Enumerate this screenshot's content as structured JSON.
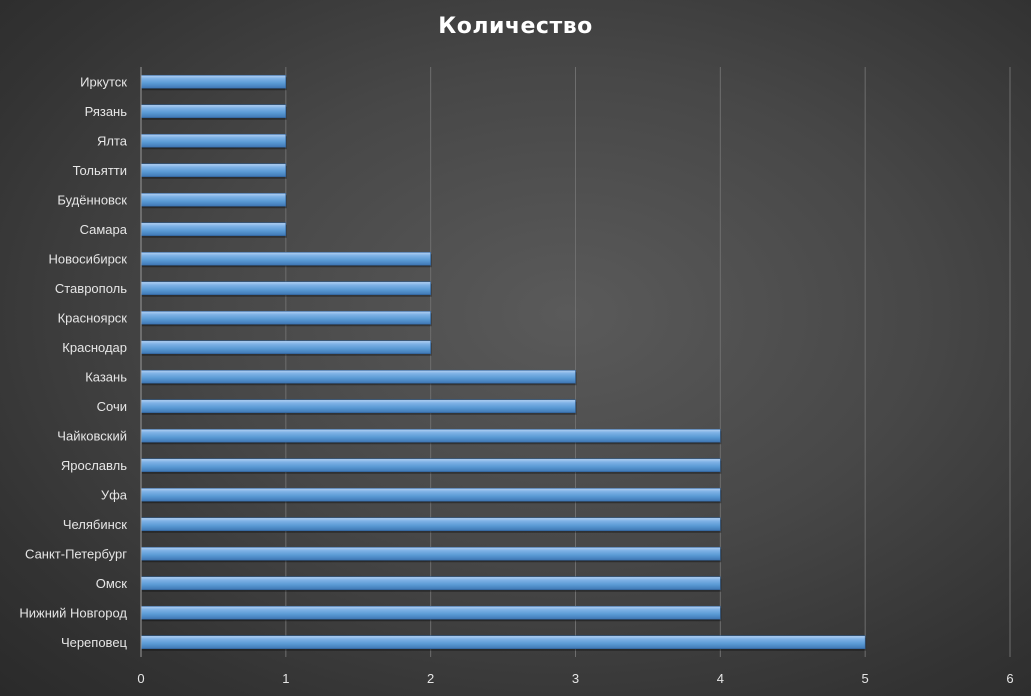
{
  "chart_data": {
    "type": "bar",
    "orientation": "horizontal",
    "title": "Количество",
    "xlabel": "",
    "ylabel": "",
    "categories": [
      "Череповец",
      "Нижний Новгород",
      "Омск",
      "Санкт-Петербург",
      "Челябинск",
      "Уфа",
      "Ярославль",
      "Чайковский",
      "Сочи",
      "Казань",
      "Краснодар",
      "Красноярск",
      "Ставрополь",
      "Новосибирск",
      "Самара",
      "Будённовск",
      "Тольятти",
      "Ялта",
      "Рязань",
      "Иркутск"
    ],
    "values": [
      5,
      4,
      4,
      4,
      4,
      4,
      4,
      4,
      3,
      3,
      2,
      2,
      2,
      2,
      1,
      1,
      1,
      1,
      1,
      1
    ],
    "xlim": [
      0,
      6
    ],
    "x_ticks": [
      "0",
      "1",
      "2",
      "3",
      "4",
      "5",
      "6"
    ],
    "grid": "vertical",
    "legend": "none",
    "colors": {
      "bar": "#5b9bd5",
      "bar_highlight": "#a9c9ee",
      "bar_shadow": "#2f5f94",
      "gridline": "#6e6e6e",
      "axis": "#9a9a9a",
      "text": "#e6e6e6",
      "title": "#ffffff"
    }
  }
}
